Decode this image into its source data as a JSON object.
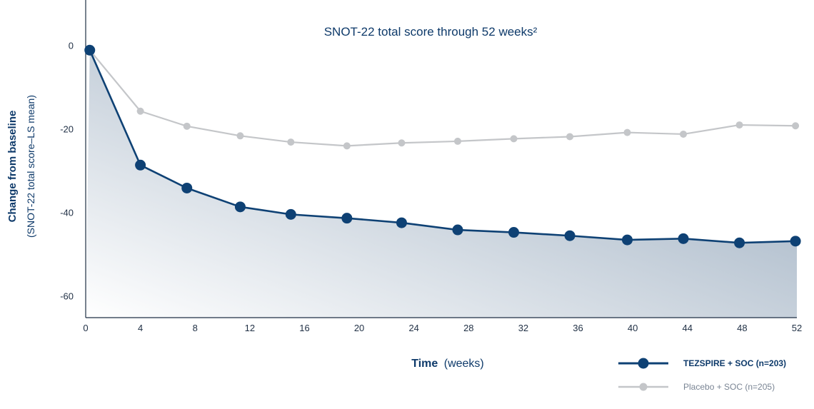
{
  "chart_data": {
    "type": "line",
    "title": "SNOT-22 total score through 52 weeks²",
    "ylabel_main": "Change from baseline",
    "ylabel_sub": "(SNOT-22 total score–LS mean)",
    "xlabel_main": "Time",
    "xlabel_unit": "(weeks)",
    "x_ticks": [
      0,
      4,
      8,
      12,
      16,
      20,
      24,
      28,
      32,
      36,
      40,
      44,
      48,
      52
    ],
    "y_ticks": [
      0,
      -20,
      -40,
      -60
    ],
    "xlim": [
      0,
      52
    ],
    "ylim": [
      -65,
      11
    ],
    "series": [
      {
        "name": "TEZSPIRE + SOC (n=203)",
        "color": "#0e4174",
        "x": [
          0.3,
          4,
          7.4,
          11.3,
          15,
          19.1,
          23.1,
          27.2,
          31.3,
          35.4,
          39.6,
          43.7,
          47.8,
          51.9
        ],
        "y": [
          -1,
          -28.5,
          -34,
          -38.5,
          -40.3,
          -41.2,
          -42.3,
          -44,
          -44.6,
          -45.4,
          -46.4,
          -46.1,
          -47.1,
          -46.7
        ]
      },
      {
        "name": "Placebo + SOC (n=205)",
        "color": "#c4c6c9",
        "x": [
          0.3,
          4,
          7.4,
          11.3,
          15,
          19.1,
          23.1,
          27.2,
          31.3,
          35.4,
          39.6,
          43.7,
          47.8,
          51.9
        ],
        "y": [
          -1,
          -15.6,
          -19.2,
          -21.5,
          -23,
          -23.9,
          -23.2,
          -22.8,
          -22.2,
          -21.7,
          -20.7,
          -21.1,
          -18.9,
          -19.1
        ]
      }
    ],
    "fill_under": "TEZSPIRE + SOC (n=203)",
    "grid": false,
    "legend_position": "bottom-right"
  }
}
